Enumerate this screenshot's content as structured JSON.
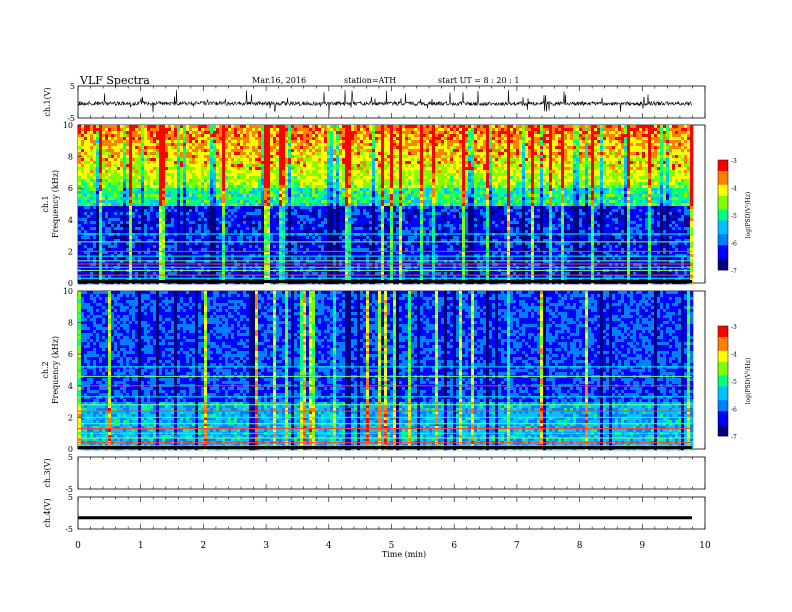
{
  "header": {
    "title": "VLF  Spectra",
    "date": "Mar.16, 2016",
    "station": "station=ATH",
    "start": "start  UT =   8 : 20 : 1"
  },
  "chart_data": [
    {
      "type": "line",
      "title": "",
      "ylabel": "ch.1(V)",
      "ylim": [
        -5,
        5
      ],
      "yticks": [
        "5",
        "-5"
      ],
      "xlim": [
        0,
        10
      ],
      "description_of_values": "noisy waveform near 0 V with many short spikes",
      "baseline": 0
    },
    {
      "type": "heatmap",
      "ylabel": "ch.1\nFrequency (kHz)",
      "ylabel_lines": [
        "ch.1",
        "Frequency (kHz)"
      ],
      "ylim": [
        0,
        10
      ],
      "yticks": [
        "0",
        "2",
        "4",
        "6",
        "8",
        "10"
      ],
      "xlim": [
        0,
        9.8
      ],
      "colorbar": {
        "label": "log(PSD(V²/Hz)",
        "range": [
          -7,
          -3
        ],
        "ticks": [
          "-3",
          "-4",
          "-5",
          "-6",
          "-7"
        ]
      }
    },
    {
      "type": "heatmap",
      "ylabel_lines": [
        "ch.2",
        "Frequency (kHz)"
      ],
      "ylim": [
        0,
        10
      ],
      "yticks": [
        "0",
        "2",
        "4",
        "6",
        "8",
        "10"
      ],
      "xlim": [
        0,
        9.8
      ],
      "colorbar": {
        "label": "log(PSD(V²/Hz)",
        "range": [
          -7,
          -3
        ],
        "ticks": [
          "-3",
          "-4",
          "-5",
          "-6",
          "-7"
        ]
      }
    },
    {
      "type": "line",
      "ylabel": "ch.3(V)",
      "ylim": [
        -5,
        5
      ],
      "yticks": [
        "5",
        "-5"
      ],
      "xlim": [
        0,
        10
      ],
      "baseline": null
    },
    {
      "type": "line",
      "ylabel": "ch.4(V)",
      "ylim": [
        -5,
        5
      ],
      "yticks": [
        "5",
        "-5"
      ],
      "xlim": [
        0,
        10
      ],
      "baseline": -1.5
    }
  ],
  "xaxis": {
    "label": "Time  (min)",
    "ticks": [
      "0",
      "1",
      "2",
      "3",
      "4",
      "5",
      "6",
      "7",
      "8",
      "9",
      "10"
    ],
    "range": [
      0,
      10
    ]
  },
  "colors": {
    "scale": [
      "#000080",
      "#0000ff",
      "#0080ff",
      "#00c0ff",
      "#00ff80",
      "#80ff00",
      "#ffff00",
      "#ff8000",
      "#ff0000",
      "#ffffff"
    ]
  }
}
